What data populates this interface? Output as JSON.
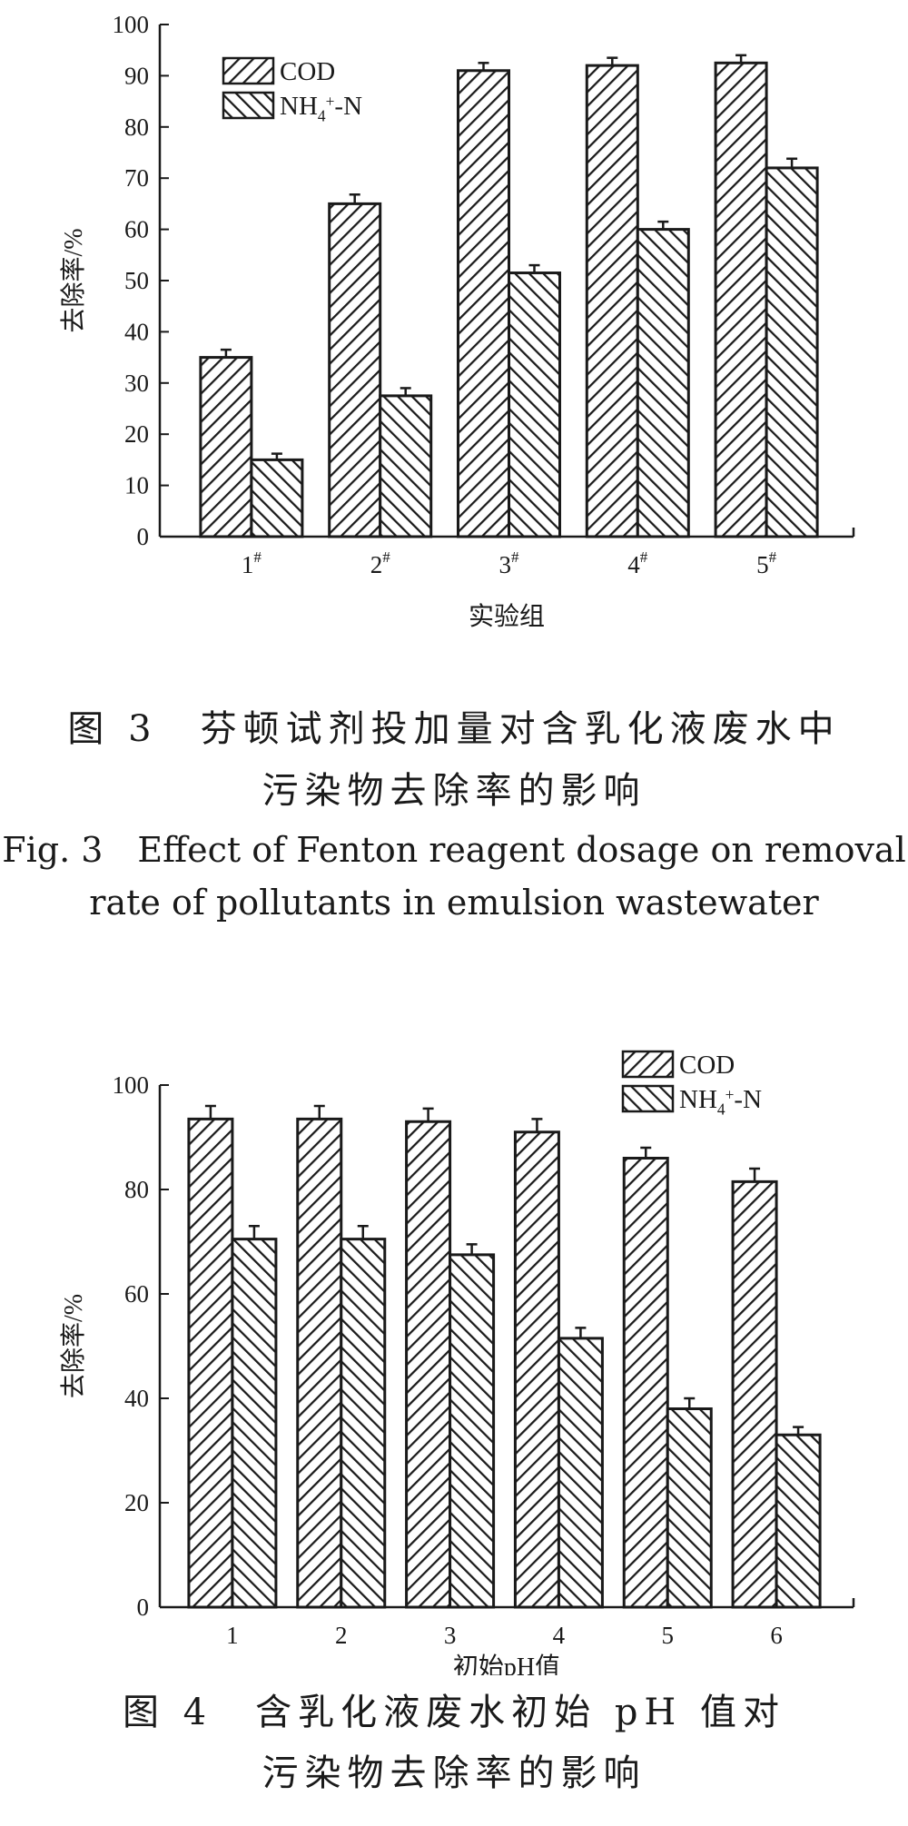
{
  "figure3": {
    "caption_zh_line1": "图 3　芬顿试剂投加量对含乳化液废水中",
    "caption_zh_line2": "污染物去除率的影响",
    "caption_en_line1": "Fig. 3　Effect of Fenton reagent dosage on removal",
    "caption_en_line2": "rate of pollutants in emulsion wastewater"
  },
  "figure4": {
    "caption_zh_line1": "图 4　含乳化液废水初始 pH 值对",
    "caption_zh_line2": "污染物去除率的影响"
  },
  "colors": {
    "ink": "#1a1a1a",
    "background": "#ffffff"
  },
  "chart_data": [
    {
      "type": "bar",
      "ylabel": "去除率/%",
      "xlabel": "实验组",
      "ylim": [
        0,
        100
      ],
      "yticks": [
        0,
        10,
        20,
        30,
        40,
        50,
        60,
        70,
        80,
        90,
        100
      ],
      "categories": [
        "1#",
        "2#",
        "3#",
        "4#",
        "5#"
      ],
      "legend_position": "top-left",
      "grid": false,
      "series": [
        {
          "name": "COD",
          "hatch": "forward-diagonal",
          "values": [
            35,
            65,
            91,
            92,
            92.5
          ],
          "errors": [
            1.5,
            1.8,
            1.5,
            1.5,
            1.5
          ]
        },
        {
          "name": "NH4+-N",
          "hatch": "back-diagonal",
          "values": [
            15,
            27.5,
            51.5,
            60,
            72
          ],
          "errors": [
            1.2,
            1.5,
            1.5,
            1.5,
            1.8
          ]
        }
      ]
    },
    {
      "type": "bar",
      "ylabel": "去除率/%",
      "xlabel": "初始pH值",
      "ylim": [
        0,
        100
      ],
      "yticks": [
        0,
        20,
        40,
        60,
        80,
        100
      ],
      "categories": [
        "1",
        "2",
        "3",
        "4",
        "5",
        "6"
      ],
      "legend_position": "top-right",
      "grid": false,
      "series": [
        {
          "name": "COD",
          "hatch": "forward-diagonal",
          "values": [
            93.5,
            93.5,
            93,
            91,
            86,
            81.5
          ],
          "errors": [
            2.5,
            2.5,
            2.5,
            2.5,
            2,
            2.5
          ]
        },
        {
          "name": "NH4+-N",
          "hatch": "back-diagonal",
          "values": [
            70.5,
            70.5,
            67.5,
            51.5,
            38,
            33
          ],
          "errors": [
            2.5,
            2.5,
            2,
            2,
            2,
            1.5
          ]
        }
      ]
    }
  ]
}
